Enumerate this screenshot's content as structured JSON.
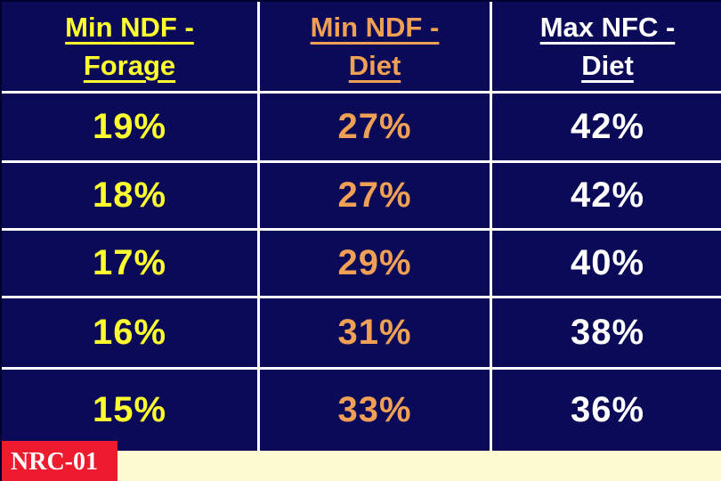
{
  "slide": {
    "table": {
      "headers": [
        {
          "line1": "Min NDF -",
          "line2": "Forage"
        },
        {
          "line1": "Min NDF -",
          "line2": "Diet"
        },
        {
          "line1": "Max NFC -",
          "line2": "Diet"
        }
      ],
      "rows": [
        [
          "19%",
          "27%",
          "42%"
        ],
        [
          "18%",
          "27%",
          "42%"
        ],
        [
          "17%",
          "29%",
          "40%"
        ],
        [
          "16%",
          "31%",
          "38%"
        ],
        [
          "15%",
          "33%",
          "36%"
        ]
      ]
    },
    "footer_label": "NRC-01",
    "colors": {
      "background": "#0a0a58",
      "gridline": "#ffffff",
      "col1_text": "#ffff2e",
      "col2_text": "#f0a055",
      "col3_text": "#ffffff",
      "footer_bg": "#ee1a2d",
      "footer_text": "#ffffff",
      "bottom_strip": "#fdfad2"
    }
  },
  "chart_data": {
    "type": "table",
    "columns": [
      "Min NDF - Forage",
      "Min NDF - Diet",
      "Max NFC - Diet"
    ],
    "rows": [
      [
        "19%",
        "27%",
        "42%"
      ],
      [
        "18%",
        "27%",
        "42%"
      ],
      [
        "17%",
        "29%",
        "40%"
      ],
      [
        "16%",
        "31%",
        "38%"
      ],
      [
        "15%",
        "33%",
        "36%"
      ]
    ],
    "annotation": "NRC-01"
  }
}
